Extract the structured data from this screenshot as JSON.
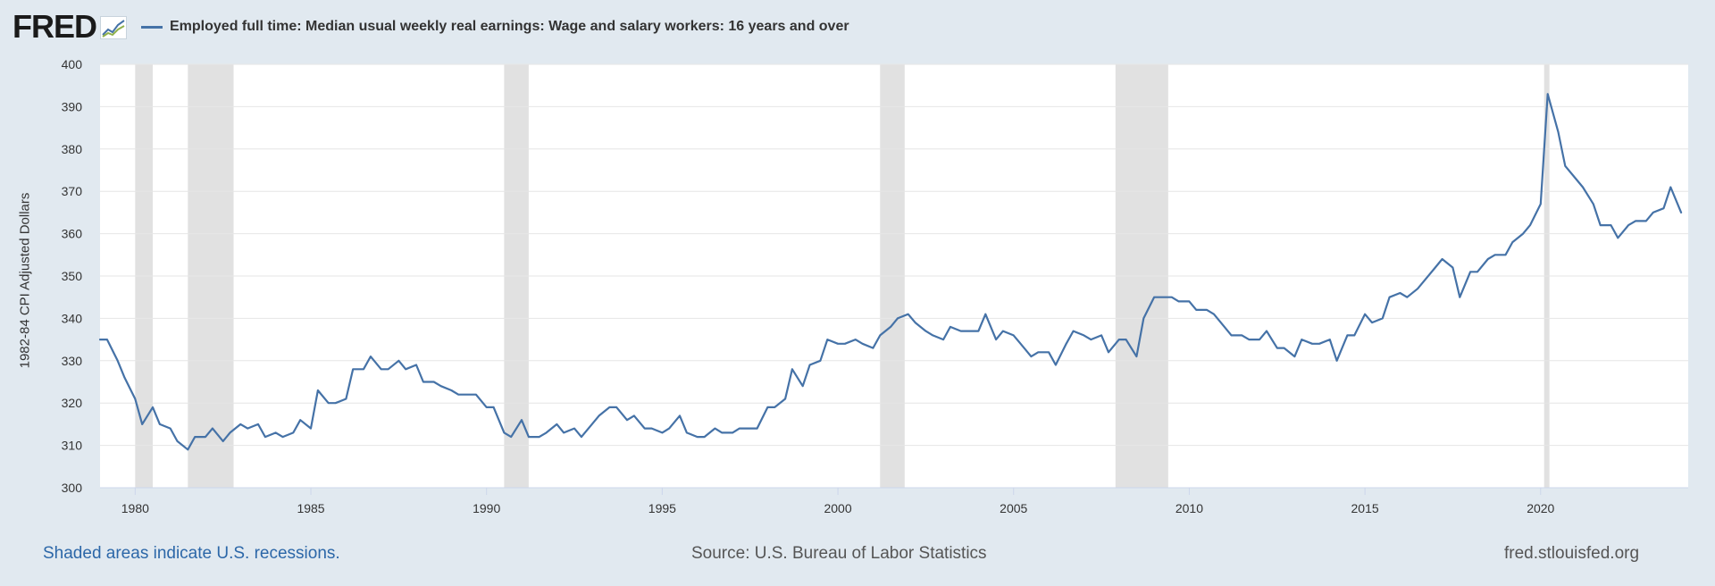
{
  "header": {
    "logo_text": "FRED",
    "logo_icon": "line-chart-icon",
    "series_title": "Employed full time: Median usual weekly real earnings: Wage and salary workers: 16 years and over"
  },
  "footer": {
    "recession_note": "Shaded areas indicate U.S. recessions.",
    "source": "Source: U.S. Bureau of Labor Statistics",
    "site": "fred.stlouisfed.org"
  },
  "colors": {
    "background": "#e1e9f0",
    "plot_background": "#ffffff",
    "series": "#4572a7",
    "recession": "#e1e1e1",
    "grid": "#e6e6e6",
    "footer_link": "#2c67a8"
  },
  "chart_data": {
    "type": "line",
    "title": "",
    "xlabel": "",
    "ylabel": "1982-84 CPI Adjusted Dollars",
    "ylim": [
      300,
      400
    ],
    "yticks": [
      300,
      310,
      320,
      330,
      340,
      350,
      360,
      370,
      380,
      390,
      400
    ],
    "xticks": [
      1980,
      1985,
      1990,
      1995,
      2000,
      2005,
      2010,
      2015,
      2020
    ],
    "xlim": [
      1979.0,
      2024.2
    ],
    "grid": true,
    "legend": "top-left",
    "recessions": [
      [
        1980.0,
        1980.5
      ],
      [
        1981.5,
        1982.8
      ],
      [
        1990.5,
        1991.2
      ],
      [
        2001.2,
        2001.9
      ],
      [
        2007.9,
        2009.4
      ],
      [
        2020.1,
        2020.25
      ]
    ],
    "series": [
      {
        "name": "Employed full time: Median usual weekly real earnings: Wage and salary workers: 16 years and over",
        "x": [
          1979.0,
          1979.2,
          1979.5,
          1979.7,
          1980.0,
          1980.2,
          1980.5,
          1980.7,
          1981.0,
          1981.2,
          1981.5,
          1981.7,
          1982.0,
          1982.2,
          1982.5,
          1982.7,
          1983.0,
          1983.2,
          1983.5,
          1983.7,
          1984.0,
          1984.2,
          1984.5,
          1984.7,
          1985.0,
          1985.2,
          1985.5,
          1985.7,
          1986.0,
          1986.2,
          1986.5,
          1986.7,
          1987.0,
          1987.2,
          1987.5,
          1987.7,
          1988.0,
          1988.2,
          1988.5,
          1988.7,
          1989.0,
          1989.2,
          1989.5,
          1989.7,
          1990.0,
          1990.2,
          1990.5,
          1990.7,
          1991.0,
          1991.2,
          1991.5,
          1991.7,
          1992.0,
          1992.2,
          1992.5,
          1992.7,
          1993.0,
          1993.2,
          1993.5,
          1993.7,
          1994.0,
          1994.2,
          1994.5,
          1994.7,
          1995.0,
          1995.2,
          1995.5,
          1995.7,
          1996.0,
          1996.2,
          1996.5,
          1996.7,
          1997.0,
          1997.2,
          1997.5,
          1997.7,
          1998.0,
          1998.2,
          1998.5,
          1998.7,
          1999.0,
          1999.2,
          1999.5,
          1999.7,
          2000.0,
          2000.2,
          2000.5,
          2000.7,
          2001.0,
          2001.2,
          2001.5,
          2001.7,
          2002.0,
          2002.2,
          2002.5,
          2002.7,
          2003.0,
          2003.2,
          2003.5,
          2003.7,
          2004.0,
          2004.2,
          2004.5,
          2004.7,
          2005.0,
          2005.2,
          2005.5,
          2005.7,
          2006.0,
          2006.2,
          2006.5,
          2006.7,
          2007.0,
          2007.2,
          2007.5,
          2007.7,
          2008.0,
          2008.2,
          2008.5,
          2008.7,
          2009.0,
          2009.2,
          2009.5,
          2009.7,
          2010.0,
          2010.2,
          2010.5,
          2010.7,
          2011.0,
          2011.2,
          2011.5,
          2011.7,
          2012.0,
          2012.2,
          2012.5,
          2012.7,
          2013.0,
          2013.2,
          2013.5,
          2013.7,
          2014.0,
          2014.2,
          2014.5,
          2014.7,
          2015.0,
          2015.2,
          2015.5,
          2015.7,
          2016.0,
          2016.2,
          2016.5,
          2016.7,
          2017.0,
          2017.2,
          2017.5,
          2017.7,
          2018.0,
          2018.2,
          2018.5,
          2018.7,
          2019.0,
          2019.2,
          2019.5,
          2019.7,
          2020.0,
          2020.2,
          2020.5,
          2020.7,
          2021.0,
          2021.2,
          2021.5,
          2021.7,
          2022.0,
          2022.2,
          2022.5,
          2022.7,
          2023.0,
          2023.2,
          2023.5,
          2023.7,
          2024.0
        ],
        "values": [
          335,
          335,
          330,
          326,
          321,
          315,
          319,
          315,
          314,
          311,
          309,
          312,
          312,
          314,
          311,
          313,
          315,
          314,
          315,
          312,
          313,
          312,
          313,
          316,
          314,
          323,
          320,
          320,
          321,
          328,
          328,
          331,
          328,
          328,
          330,
          328,
          329,
          325,
          325,
          324,
          323,
          322,
          322,
          322,
          319,
          319,
          313,
          312,
          316,
          312,
          312,
          313,
          315,
          313,
          314,
          312,
          315,
          317,
          319,
          319,
          316,
          317,
          314,
          314,
          313,
          314,
          317,
          313,
          312,
          312,
          314,
          313,
          313,
          314,
          314,
          314,
          319,
          319,
          321,
          328,
          324,
          329,
          330,
          335,
          334,
          334,
          335,
          334,
          333,
          336,
          338,
          340,
          341,
          339,
          337,
          336,
          335,
          338,
          337,
          337,
          337,
          341,
          335,
          337,
          336,
          334,
          331,
          332,
          332,
          329,
          334,
          337,
          336,
          335,
          336,
          332,
          335,
          335,
          331,
          340,
          345,
          345,
          345,
          344,
          344,
          342,
          342,
          341,
          338,
          336,
          336,
          335,
          335,
          337,
          333,
          333,
          331,
          335,
          334,
          334,
          335,
          330,
          336,
          336,
          341,
          339,
          340,
          345,
          346,
          345,
          347,
          349,
          352,
          354,
          352,
          345,
          351,
          351,
          354,
          355,
          355,
          358,
          360,
          362,
          367,
          393,
          384,
          376,
          373,
          371,
          367,
          362,
          362,
          359,
          362,
          363,
          363,
          365,
          366,
          371,
          365
        ]
      }
    ]
  }
}
